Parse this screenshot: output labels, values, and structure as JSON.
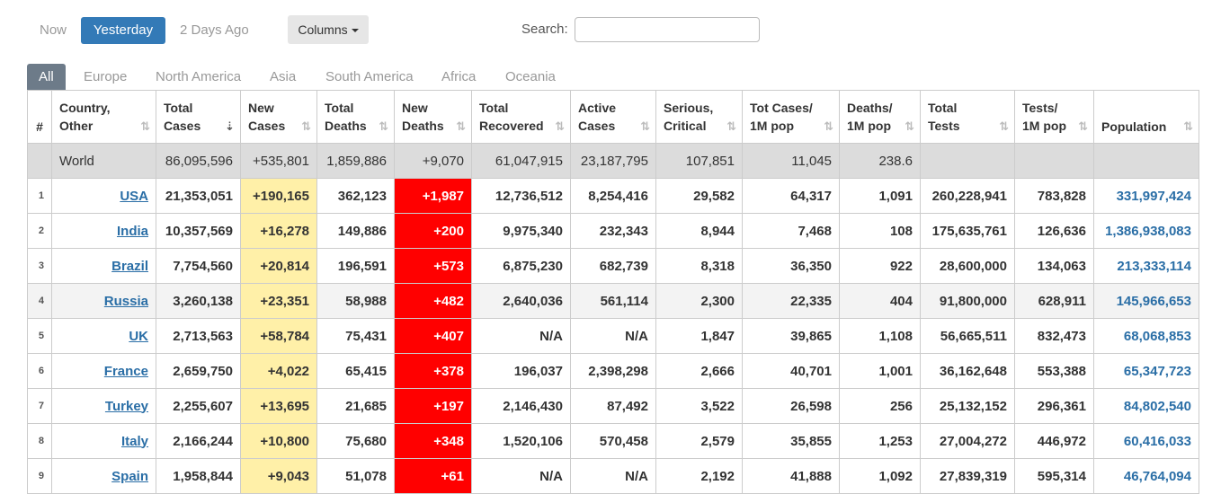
{
  "day_buttons": [
    "Now",
    "Yesterday",
    "2 Days Ago"
  ],
  "columns_button": "Columns",
  "search": {
    "label": "Search:",
    "value": ""
  },
  "tabs": [
    "All",
    "Europe",
    "North America",
    "Asia",
    "South America",
    "Africa",
    "Oceania"
  ],
  "headers": [
    [
      "#",
      ""
    ],
    [
      "Country,",
      "Other"
    ],
    [
      "Total",
      "Cases"
    ],
    [
      "New",
      "Cases"
    ],
    [
      "Total",
      "Deaths"
    ],
    [
      "New",
      "Deaths"
    ],
    [
      "Total",
      "Recovered"
    ],
    [
      "Active",
      "Cases"
    ],
    [
      "Serious,",
      "Critical"
    ],
    [
      "Tot Cases/",
      "1M pop"
    ],
    [
      "Deaths/",
      "1M pop"
    ],
    [
      "Total",
      "Tests"
    ],
    [
      "Tests/",
      "1M pop"
    ],
    [
      "",
      "Population"
    ]
  ],
  "world": {
    "country": "World",
    "total_cases": "86,095,596",
    "new_cases": "+535,801",
    "total_deaths": "1,859,886",
    "new_deaths": "+9,070",
    "total_recovered": "61,047,915",
    "active_cases": "23,187,795",
    "serious": "107,851",
    "cases_per_1m": "11,045",
    "deaths_per_1m": "238.6",
    "total_tests": "",
    "tests_per_1m": "",
    "population": ""
  },
  "rows": [
    {
      "idx": "1",
      "country": "USA",
      "total_cases": "21,353,051",
      "new_cases": "+190,165",
      "total_deaths": "362,123",
      "new_deaths": "+1,987",
      "total_recovered": "12,736,512",
      "active_cases": "8,254,416",
      "serious": "29,582",
      "cases_per_1m": "64,317",
      "deaths_per_1m": "1,091",
      "total_tests": "260,228,941",
      "tests_per_1m": "783,828",
      "population": "331,997,424"
    },
    {
      "idx": "2",
      "country": "India",
      "total_cases": "10,357,569",
      "new_cases": "+16,278",
      "total_deaths": "149,886",
      "new_deaths": "+200",
      "total_recovered": "9,975,340",
      "active_cases": "232,343",
      "serious": "8,944",
      "cases_per_1m": "7,468",
      "deaths_per_1m": "108",
      "total_tests": "175,635,761",
      "tests_per_1m": "126,636",
      "population": "1,386,938,083"
    },
    {
      "idx": "3",
      "country": "Brazil",
      "total_cases": "7,754,560",
      "new_cases": "+20,814",
      "total_deaths": "196,591",
      "new_deaths": "+573",
      "total_recovered": "6,875,230",
      "active_cases": "682,739",
      "serious": "8,318",
      "cases_per_1m": "36,350",
      "deaths_per_1m": "922",
      "total_tests": "28,600,000",
      "tests_per_1m": "134,063",
      "population": "213,333,114"
    },
    {
      "idx": "4",
      "country": "Russia",
      "total_cases": "3,260,138",
      "new_cases": "+23,351",
      "total_deaths": "58,988",
      "new_deaths": "+482",
      "total_recovered": "2,640,036",
      "active_cases": "561,114",
      "serious": "2,300",
      "cases_per_1m": "22,335",
      "deaths_per_1m": "404",
      "total_tests": "91,800,000",
      "tests_per_1m": "628,911",
      "population": "145,966,653"
    },
    {
      "idx": "5",
      "country": "UK",
      "total_cases": "2,713,563",
      "new_cases": "+58,784",
      "total_deaths": "75,431",
      "new_deaths": "+407",
      "total_recovered": "N/A",
      "active_cases": "N/A",
      "serious": "1,847",
      "cases_per_1m": "39,865",
      "deaths_per_1m": "1,108",
      "total_tests": "56,665,511",
      "tests_per_1m": "832,473",
      "population": "68,068,853"
    },
    {
      "idx": "6",
      "country": "France",
      "total_cases": "2,659,750",
      "new_cases": "+4,022",
      "total_deaths": "65,415",
      "new_deaths": "+378",
      "total_recovered": "196,037",
      "active_cases": "2,398,298",
      "serious": "2,666",
      "cases_per_1m": "40,701",
      "deaths_per_1m": "1,001",
      "total_tests": "36,162,648",
      "tests_per_1m": "553,388",
      "population": "65,347,723"
    },
    {
      "idx": "7",
      "country": "Turkey",
      "total_cases": "2,255,607",
      "new_cases": "+13,695",
      "total_deaths": "21,685",
      "new_deaths": "+197",
      "total_recovered": "2,146,430",
      "active_cases": "87,492",
      "serious": "3,522",
      "cases_per_1m": "26,598",
      "deaths_per_1m": "256",
      "total_tests": "25,132,152",
      "tests_per_1m": "296,361",
      "population": "84,802,540"
    },
    {
      "idx": "8",
      "country": "Italy",
      "total_cases": "2,166,244",
      "new_cases": "+10,800",
      "total_deaths": "75,680",
      "new_deaths": "+348",
      "total_recovered": "1,520,106",
      "active_cases": "570,458",
      "serious": "2,579",
      "cases_per_1m": "35,855",
      "deaths_per_1m": "1,253",
      "total_tests": "27,004,272",
      "tests_per_1m": "446,972",
      "population": "60,416,033"
    },
    {
      "idx": "9",
      "country": "Spain",
      "total_cases": "1,958,844",
      "new_cases": "+9,043",
      "total_deaths": "51,078",
      "new_deaths": "+61",
      "total_recovered": "N/A",
      "active_cases": "N/A",
      "serious": "2,192",
      "cases_per_1m": "41,888",
      "deaths_per_1m": "1,092",
      "total_tests": "27,839,319",
      "tests_per_1m": "595,314",
      "population": "46,764,094"
    }
  ],
  "colors": {
    "accent": "#337ab7",
    "new_cases_bg": "#fff0a8",
    "new_deaths_bg": "#ff0000",
    "link": "#2a6ea6"
  },
  "icons": {
    "sort": "sort-arrows-icon",
    "sort_active": "sort-desc-icon",
    "dropdown": "caret-down-icon"
  }
}
